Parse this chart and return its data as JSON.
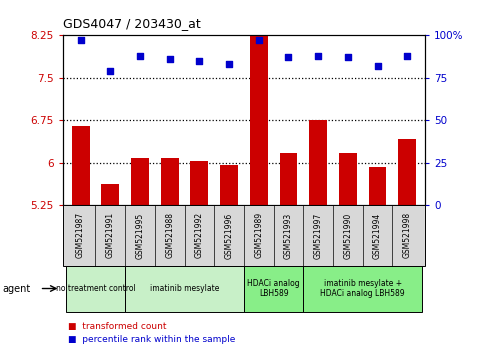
{
  "title": "GDS4047 / 203430_at",
  "samples": [
    "GSM521987",
    "GSM521991",
    "GSM521995",
    "GSM521988",
    "GSM521992",
    "GSM521996",
    "GSM521989",
    "GSM521993",
    "GSM521997",
    "GSM521990",
    "GSM521994",
    "GSM521998"
  ],
  "bar_values": [
    6.65,
    5.62,
    6.08,
    6.08,
    6.03,
    5.97,
    8.28,
    6.18,
    6.75,
    6.18,
    5.92,
    6.42
  ],
  "dot_values": [
    97,
    79,
    88,
    86,
    85,
    83,
    97,
    87,
    88,
    87,
    82,
    88
  ],
  "ylim_left": [
    5.25,
    8.25
  ],
  "ylim_right": [
    0,
    100
  ],
  "yticks_left": [
    5.25,
    6.0,
    6.75,
    7.5,
    8.25
  ],
  "ytick_labels_left": [
    "5.25",
    "6",
    "6.75",
    "7.5",
    "8.25"
  ],
  "yticks_right": [
    0,
    25,
    50,
    75,
    100
  ],
  "ytick_labels_right": [
    "0",
    "25",
    "50",
    "75",
    "100%"
  ],
  "bar_color": "#cc0000",
  "dot_color": "#0000cc",
  "bar_width": 0.6,
  "groups": [
    {
      "label": "no treatment control",
      "start": 0,
      "end": 2,
      "color": "#c8f0c8"
    },
    {
      "label": "imatinib mesylate",
      "start": 2,
      "end": 6,
      "color": "#c8f0c8"
    },
    {
      "label": "HDACi analog\nLBH589",
      "start": 6,
      "end": 8,
      "color": "#88ee88"
    },
    {
      "label": "imatinib mesylate +\nHDACi analog LBH589",
      "start": 8,
      "end": 12,
      "color": "#88ee88"
    }
  ],
  "agent_label": "agent",
  "legend_bar_label": "transformed count",
  "legend_dot_label": "percentile rank within the sample",
  "bar_color_legend": "#cc0000",
  "dot_color_legend": "#0000cc",
  "tick_color_left": "#cc0000",
  "tick_color_right": "#0000cc",
  "dotted_lines": [
    6.0,
    6.75,
    7.5
  ],
  "xlim": [
    -0.6,
    11.6
  ],
  "n_samples": 12
}
